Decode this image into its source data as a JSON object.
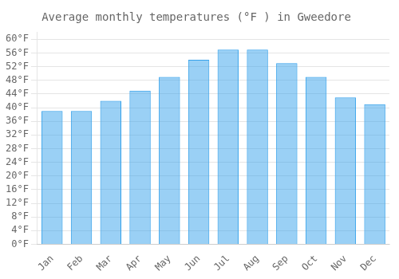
{
  "chart_data": {
    "type": "bar",
    "title": "Average monthly temperatures (°F ) in Gweedore",
    "categories": [
      "Jan",
      "Feb",
      "Mar",
      "Apr",
      "May",
      "Jun",
      "Jul",
      "Aug",
      "Sep",
      "Oct",
      "Nov",
      "Dec"
    ],
    "values": [
      39,
      39,
      42,
      45,
      49,
      54,
      57,
      57,
      53,
      49,
      43,
      41
    ],
    "ylim": [
      0,
      62
    ],
    "yticks": [
      {
        "value": 0,
        "label": "0°F"
      },
      {
        "value": 4,
        "label": "4°F"
      },
      {
        "value": 8,
        "label": "8°F"
      },
      {
        "value": 12,
        "label": "12°F"
      },
      {
        "value": 16,
        "label": "16°F"
      },
      {
        "value": 20,
        "label": "20°F"
      },
      {
        "value": 24,
        "label": "24°F"
      },
      {
        "value": 28,
        "label": "28°F"
      },
      {
        "value": 32,
        "label": "32°F"
      },
      {
        "value": 36,
        "label": "36°F"
      },
      {
        "value": 40,
        "label": "40°F"
      },
      {
        "value": 44,
        "label": "44°F"
      },
      {
        "value": 48,
        "label": "48°F"
      },
      {
        "value": 52,
        "label": "52°F"
      },
      {
        "value": 56,
        "label": "56°F"
      },
      {
        "value": 60,
        "label": "60°F"
      }
    ],
    "grid": true
  }
}
